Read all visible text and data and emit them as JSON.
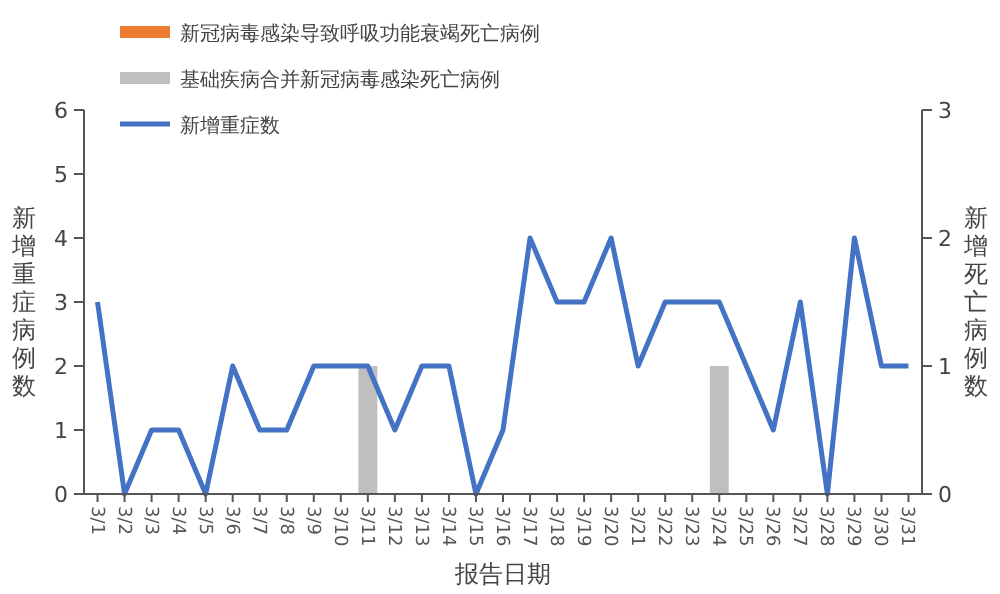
{
  "chart_data": {
    "type": "bar",
    "xlabel": "报告日期",
    "ylabel": "新增重症病例数",
    "y2label": "新增死亡病例数",
    "categories": [
      "3/1",
      "3/2",
      "3/3",
      "3/4",
      "3/5",
      "3/6",
      "3/7",
      "3/8",
      "3/9",
      "3/10",
      "3/11",
      "3/12",
      "3/13",
      "3/14",
      "3/15",
      "3/16",
      "3/17",
      "3/18",
      "3/19",
      "3/20",
      "3/21",
      "3/22",
      "3/23",
      "3/24",
      "3/25",
      "3/26",
      "3/27",
      "3/28",
      "3/29",
      "3/30",
      "3/31"
    ],
    "stacked": true,
    "series": [
      {
        "name": "新冠病毒感染导致呼吸功能衰竭死亡病例",
        "axis": "y2",
        "color": "#ed7d31",
        "values": [
          0,
          0,
          0,
          0,
          0,
          0,
          0,
          0,
          0,
          0,
          0,
          0,
          0,
          0,
          0,
          0,
          0,
          0,
          0,
          0,
          0,
          0,
          0,
          0,
          0,
          0,
          0,
          0,
          0,
          0,
          0
        ]
      },
      {
        "name": "基础疾病合并新冠病毒感染死亡病例",
        "axis": "y2",
        "color": "#bfbfbf",
        "values": [
          0,
          0,
          0,
          0,
          0,
          0,
          0,
          0,
          0,
          0,
          1,
          0,
          0,
          0,
          0,
          0,
          0,
          0,
          0,
          0,
          0,
          0,
          0,
          1,
          0,
          0,
          0,
          0,
          0,
          0,
          0
        ]
      },
      {
        "name": "新增重症数",
        "type": "line",
        "color": "#4472c4",
        "values": [
          3,
          0,
          1,
          1,
          0,
          2,
          1,
          1,
          2,
          2,
          2,
          1,
          2,
          2,
          0,
          1,
          4,
          3,
          3,
          4,
          2,
          3,
          3,
          3,
          2,
          1,
          3,
          0,
          4,
          2,
          2
        ]
      }
    ],
    "ylim": [
      0,
      6
    ],
    "yticks": [
      0,
      1,
      2,
      3,
      4,
      5,
      6
    ],
    "y2lim": [
      0,
      3
    ],
    "y2ticks": [
      0,
      1,
      2,
      3
    ],
    "legend": "top left",
    "grid": false,
    "marker": "none",
    "line_style": "solid"
  }
}
